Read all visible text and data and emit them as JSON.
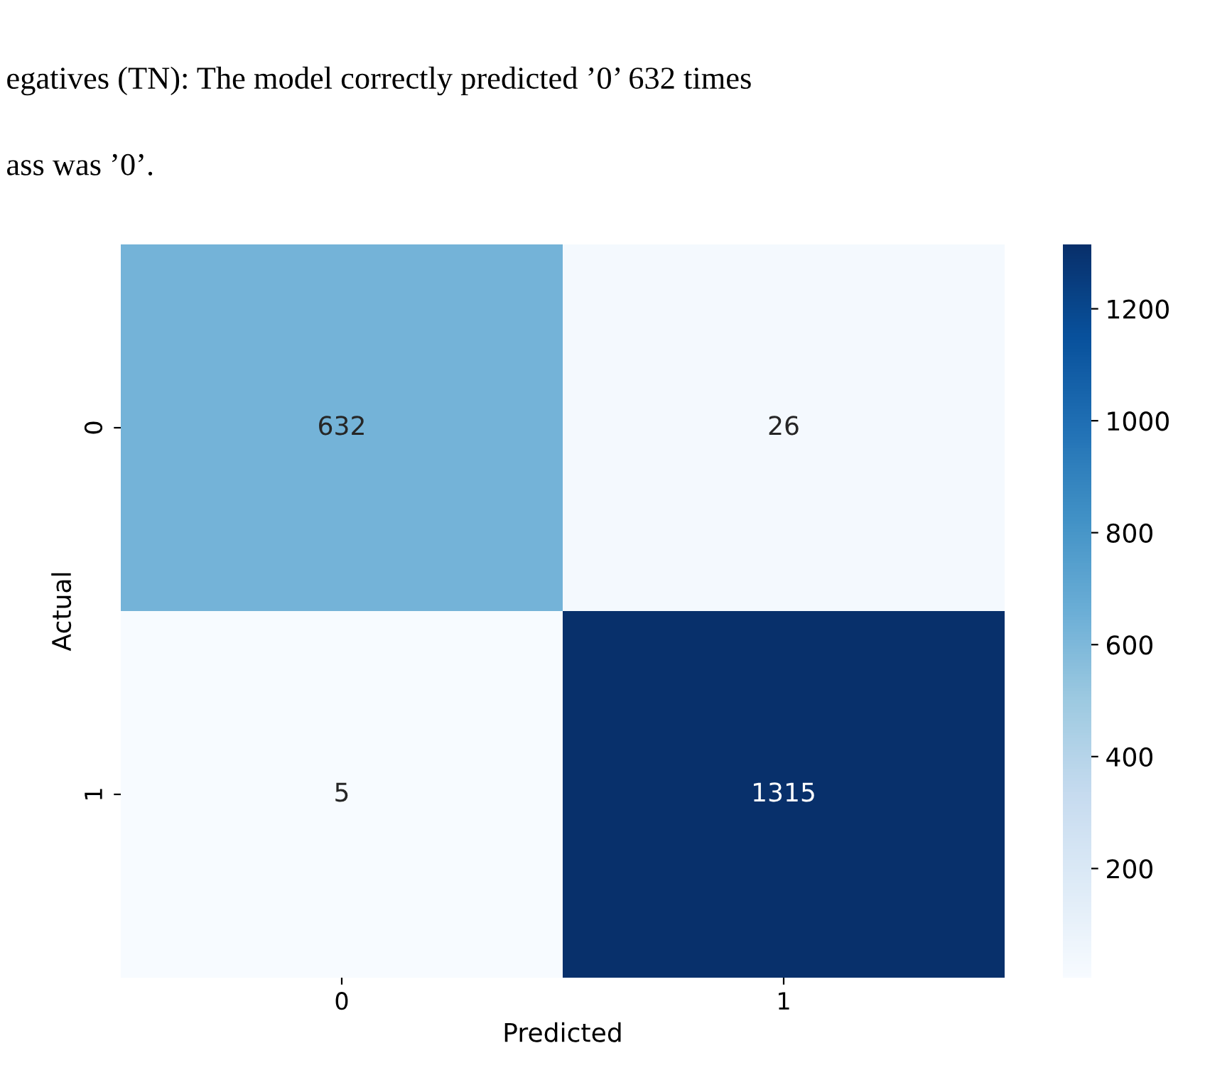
{
  "chart_data": {
    "type": "heatmap",
    "xlabel": "Predicted",
    "ylabel": "Actual",
    "categories": [
      "0",
      "1"
    ],
    "y_categories": [
      "0",
      "1"
    ],
    "cells": [
      [
        632,
        26
      ],
      [
        5,
        1315
      ]
    ],
    "data_labels": true,
    "clim": [
      5,
      1315
    ],
    "cticks": [
      200,
      400,
      600,
      800,
      1000,
      1200
    ],
    "annotations": [
      "egatives (TN): The model correctly predicted ’0’ 632 times",
      "ass was ’0’."
    ]
  }
}
